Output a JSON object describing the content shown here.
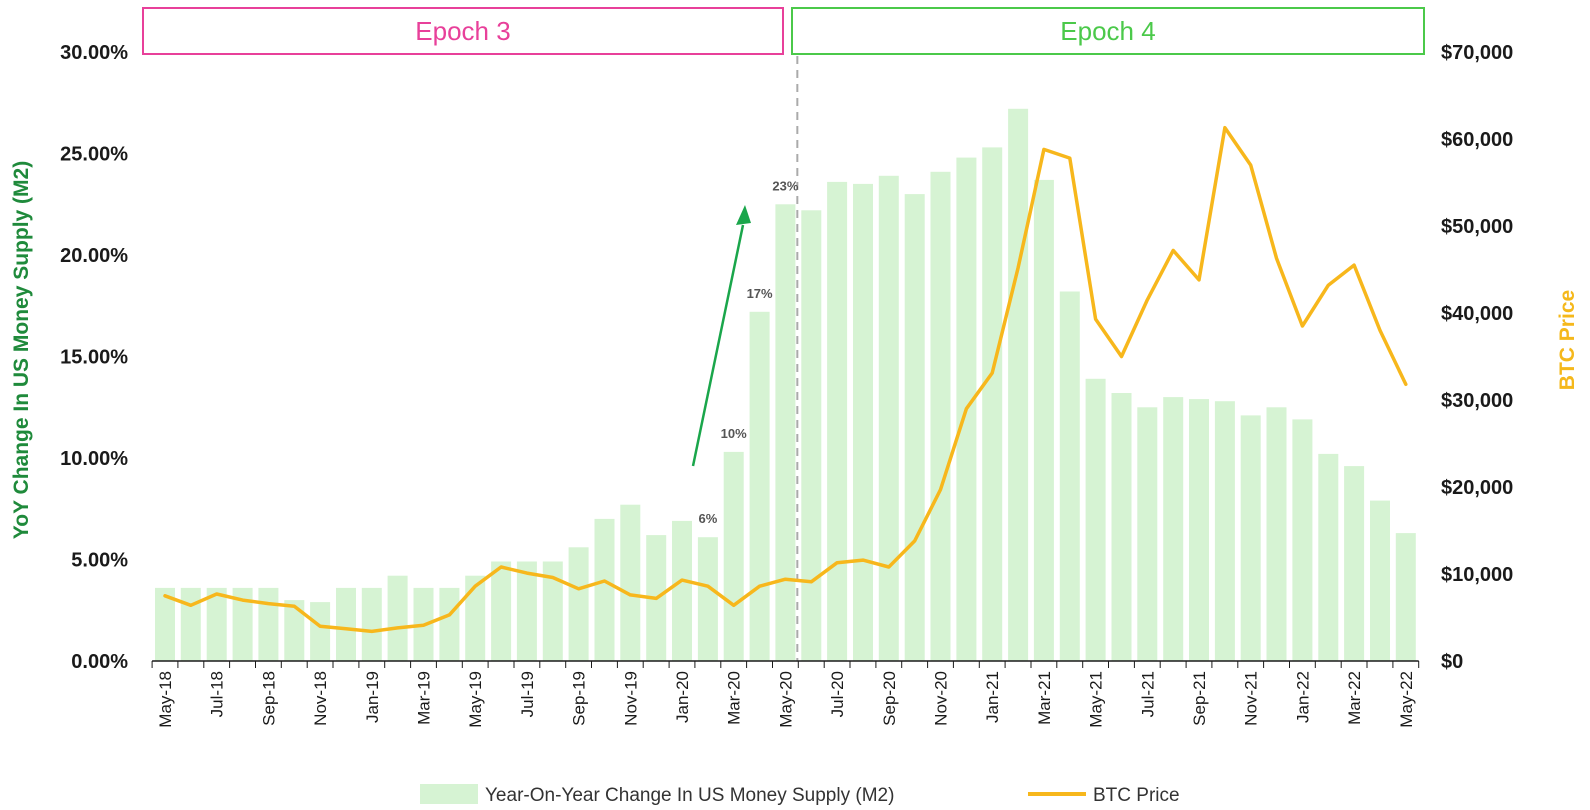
{
  "colors": {
    "bar": "#d6f3d3",
    "btc": "#f7b71c",
    "left_axis_title": "#1f8a3b",
    "right_axis_title": "#f5b81b",
    "epoch3": "#e8409a",
    "epoch4": "#4bc94a",
    "arrow": "#1aa64b",
    "divider": "#aaaaaa"
  },
  "chart_data": {
    "type": "bar+line",
    "categories": [
      "May-18",
      "Jun-18",
      "Jul-18",
      "Aug-18",
      "Sep-18",
      "Oct-18",
      "Nov-18",
      "Dec-18",
      "Jan-19",
      "Feb-19",
      "Mar-19",
      "Apr-19",
      "May-19",
      "Jun-19",
      "Jul-19",
      "Aug-19",
      "Sep-19",
      "Oct-19",
      "Nov-19",
      "Dec-19",
      "Jan-20",
      "Feb-20",
      "Mar-20",
      "Apr-20",
      "May-20",
      "Jun-20",
      "Jul-20",
      "Aug-20",
      "Sep-20",
      "Oct-20",
      "Nov-20",
      "Dec-20",
      "Jan-21",
      "Feb-21",
      "Mar-21",
      "Apr-21",
      "May-21",
      "Jun-21",
      "Jul-21",
      "Aug-21",
      "Sep-21",
      "Oct-21",
      "Nov-21",
      "Dec-21",
      "Jan-22",
      "Feb-22",
      "Mar-22",
      "Apr-22",
      "May-22"
    ],
    "tick_labels": [
      "May-18",
      "Jul-18",
      "Sep-18",
      "Nov-18",
      "Jan-19",
      "Mar-19",
      "May-19",
      "Jul-19",
      "Sep-19",
      "Nov-19",
      "Jan-20",
      "Mar-20",
      "May-20",
      "Jul-20",
      "Sep-20",
      "Nov-20",
      "Jan-21",
      "Mar-21",
      "May-21",
      "Jul-21",
      "Sep-21",
      "Nov-21",
      "Jan-22",
      "Mar-22",
      "May-22"
    ],
    "series": [
      {
        "name": "Year-On-Year Change In US Money Supply (M2)",
        "type": "bar",
        "axis": "left",
        "values": [
          3.6,
          3.6,
          3.6,
          3.6,
          3.6,
          3.0,
          2.9,
          3.6,
          3.6,
          4.2,
          3.6,
          3.6,
          4.2,
          4.9,
          4.9,
          4.9,
          5.6,
          7.0,
          7.7,
          6.2,
          6.9,
          6.1,
          10.3,
          17.2,
          22.5,
          22.2,
          23.6,
          23.5,
          23.9,
          23.0,
          24.1,
          24.8,
          25.3,
          27.2,
          23.7,
          18.2,
          13.9,
          13.2,
          12.5,
          13.0,
          12.9,
          12.8,
          12.1,
          12.5,
          11.9,
          10.2,
          9.6,
          7.9,
          6.3
        ]
      },
      {
        "name": "BTC Price",
        "type": "line",
        "axis": "right",
        "values": [
          7500,
          6400,
          7700,
          7000,
          6600,
          6300,
          4000,
          3700,
          3400,
          3800,
          4100,
          5300,
          8600,
          10800,
          10100,
          9600,
          8300,
          9200,
          7600,
          7200,
          9300,
          8600,
          6400,
          8600,
          9400,
          9100,
          11300,
          11600,
          10800,
          13800,
          19700,
          29000,
          33100,
          45200,
          58800,
          57800,
          39300,
          35000,
          41500,
          47200,
          43800,
          61300,
          57000,
          46300,
          38500,
          43200,
          45500,
          38000,
          31800
        ]
      }
    ],
    "ylabel": "YoY Change In US Money Supply (M2)",
    "ylabel_right": "BTC Price",
    "ylim": [
      0,
      30
    ],
    "ylim_right": [
      0,
      70000
    ],
    "yticks": [
      "0.00%",
      "5.00%",
      "10.00%",
      "15.00%",
      "20.00%",
      "25.00%",
      "30.00%"
    ],
    "yticks_right": [
      "$0",
      "$10,000",
      "$20,000",
      "$30,000",
      "$40,000",
      "$50,000",
      "$60,000",
      "$70,000"
    ],
    "data_labels": [
      {
        "category": "Feb-20",
        "text": "6%"
      },
      {
        "category": "Mar-20",
        "text": "10%"
      },
      {
        "category": "Apr-20",
        "text": "17%"
      },
      {
        "category": "May-20",
        "text": "23%"
      }
    ],
    "annotations": {
      "epoch3": "Epoch 3",
      "epoch4": "Epoch 4",
      "divider_category": "May-20"
    },
    "legend": {
      "placement": "bottom",
      "bar_label": "Year-On-Year Change In US Money Supply (M2)",
      "line_label": "BTC Price"
    },
    "grid": false
  }
}
